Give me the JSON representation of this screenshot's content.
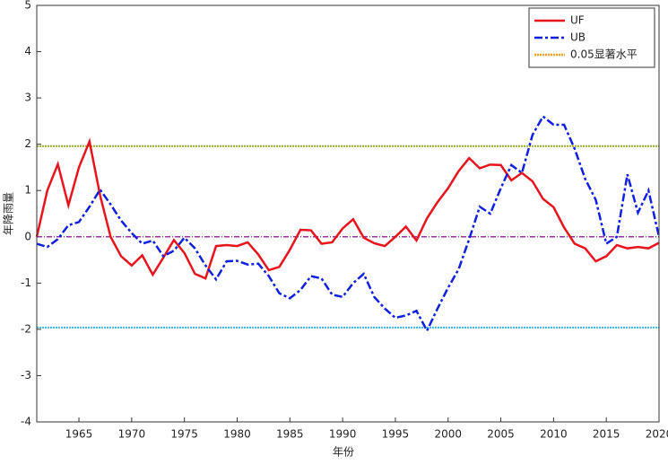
{
  "chart_data": {
    "type": "line",
    "x_label": "年份",
    "y_label": "年降雨量",
    "x": [
      1961,
      1962,
      1963,
      1964,
      1965,
      1966,
      1967,
      1968,
      1969,
      1970,
      1971,
      1972,
      1973,
      1974,
      1975,
      1976,
      1977,
      1978,
      1979,
      1980,
      1981,
      1982,
      1983,
      1984,
      1985,
      1986,
      1987,
      1988,
      1989,
      1990,
      1991,
      1992,
      1993,
      1994,
      1995,
      1996,
      1997,
      1998,
      1999,
      2000,
      2001,
      2002,
      2003,
      2004,
      2005,
      2006,
      2007,
      2008,
      2009,
      2010,
      2011,
      2012,
      2013,
      2014,
      2015,
      2016,
      2017,
      2018,
      2019,
      2020
    ],
    "series": [
      {
        "name": "UF",
        "color": "#e8141c",
        "dash": "solid",
        "values": [
          0,
          1.0,
          1.57,
          0.68,
          1.5,
          2.06,
          0.9,
          0.0,
          -0.42,
          -0.62,
          -0.4,
          -0.82,
          -0.45,
          -0.07,
          -0.35,
          -0.8,
          -0.9,
          -0.2,
          -0.18,
          -0.2,
          -0.12,
          -0.38,
          -0.72,
          -0.65,
          -0.28,
          0.15,
          0.14,
          -0.15,
          -0.12,
          0.18,
          0.38,
          -0.02,
          -0.14,
          -0.2,
          0.0,
          0.22,
          -0.08,
          0.4,
          0.75,
          1.05,
          1.42,
          1.7,
          1.48,
          1.56,
          1.55,
          1.22,
          1.38,
          1.2,
          0.82,
          0.64,
          0.2,
          -0.15,
          -0.25,
          -0.53,
          -0.42,
          -0.18,
          -0.25,
          -0.22,
          -0.25,
          -0.13
        ]
      },
      {
        "name": "UB",
        "color": "#1020e0",
        "dash": "dashdot",
        "values": [
          -0.15,
          -0.22,
          -0.05,
          0.25,
          0.32,
          0.65,
          1.02,
          0.7,
          0.35,
          0.08,
          -0.15,
          -0.08,
          -0.42,
          -0.3,
          -0.02,
          -0.25,
          -0.62,
          -0.92,
          -0.53,
          -0.52,
          -0.6,
          -0.58,
          -0.85,
          -1.22,
          -1.33,
          -1.15,
          -0.85,
          -0.9,
          -1.25,
          -1.3,
          -1.0,
          -0.8,
          -1.3,
          -1.55,
          -1.75,
          -1.7,
          -1.6,
          -2.03,
          -1.55,
          -1.1,
          -0.7,
          -0.05,
          0.65,
          0.5,
          1.05,
          1.55,
          1.38,
          2.2,
          2.6,
          2.42,
          2.42,
          1.9,
          1.25,
          0.8,
          -0.15,
          0.0,
          1.35,
          0.52,
          1.0,
          0.0
        ]
      }
    ],
    "significance": {
      "name": "0.05显著水平",
      "color": "#f0a020",
      "values": [
        1.96,
        -1.96
      ],
      "line_colors": [
        "#9aaa2a",
        "#3cb8e8"
      ]
    },
    "zero_line": {
      "value": 0,
      "color": "#9b30a0"
    },
    "xlim": [
      1961,
      2020
    ],
    "xticks": [
      1965,
      1970,
      1975,
      1980,
      1985,
      1990,
      1995,
      2000,
      2005,
      2010,
      2015,
      2020
    ],
    "ylim": [
      -4,
      5
    ],
    "yticks": [
      -4,
      -3,
      -2,
      -1,
      0,
      1,
      2,
      3,
      4,
      5
    ],
    "legend": "upper right"
  }
}
